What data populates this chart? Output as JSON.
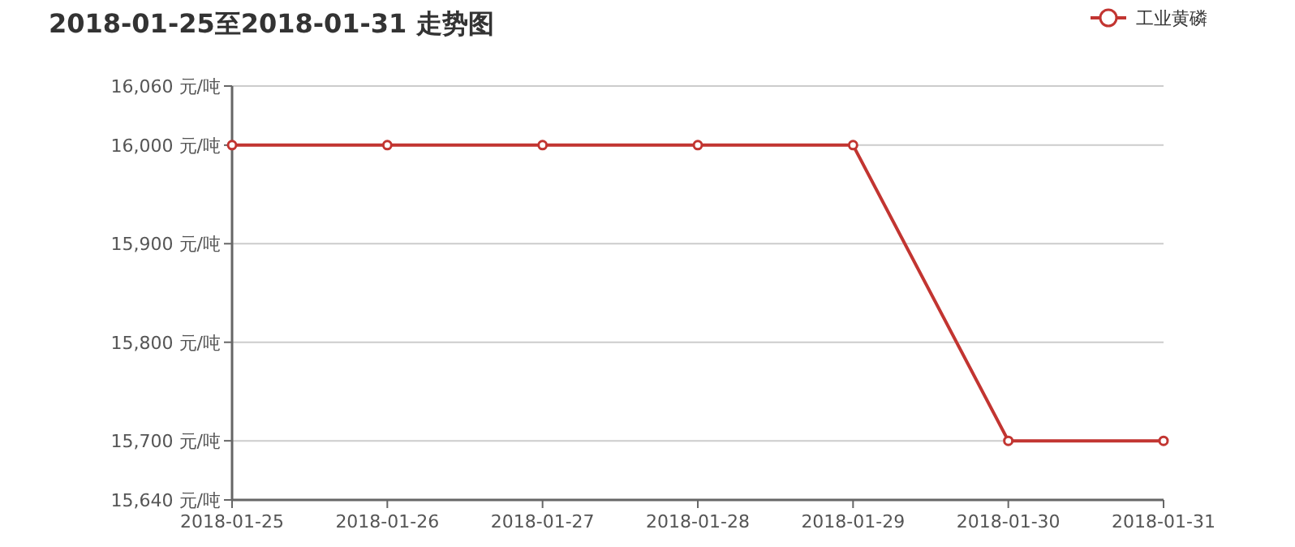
{
  "chart_data": {
    "type": "line",
    "title": "2018-01-25至2018-01-31 走势图",
    "categories": [
      "2018-01-25",
      "2018-01-26",
      "2018-01-27",
      "2018-01-28",
      "2018-01-29",
      "2018-01-30",
      "2018-01-31"
    ],
    "series": [
      {
        "name": "工业黄磷",
        "color": "#c23531",
        "values": [
          16000,
          16000,
          16000,
          16000,
          16000,
          15700,
          15700
        ]
      }
    ],
    "ylim": [
      15640,
      16060
    ],
    "yticks": [
      {
        "value": 15640,
        "label": "15,640 元/吨"
      },
      {
        "value": 15700,
        "label": "15,700 元/吨"
      },
      {
        "value": 15800,
        "label": "15,800 元/吨"
      },
      {
        "value": 15900,
        "label": "15,900 元/吨"
      },
      {
        "value": 16000,
        "label": "16,000 元/吨"
      },
      {
        "value": 16060,
        "label": "16,060 元/吨"
      }
    ],
    "grid": "y",
    "legend": "top right",
    "marker": "circle",
    "line_style": "solid"
  }
}
